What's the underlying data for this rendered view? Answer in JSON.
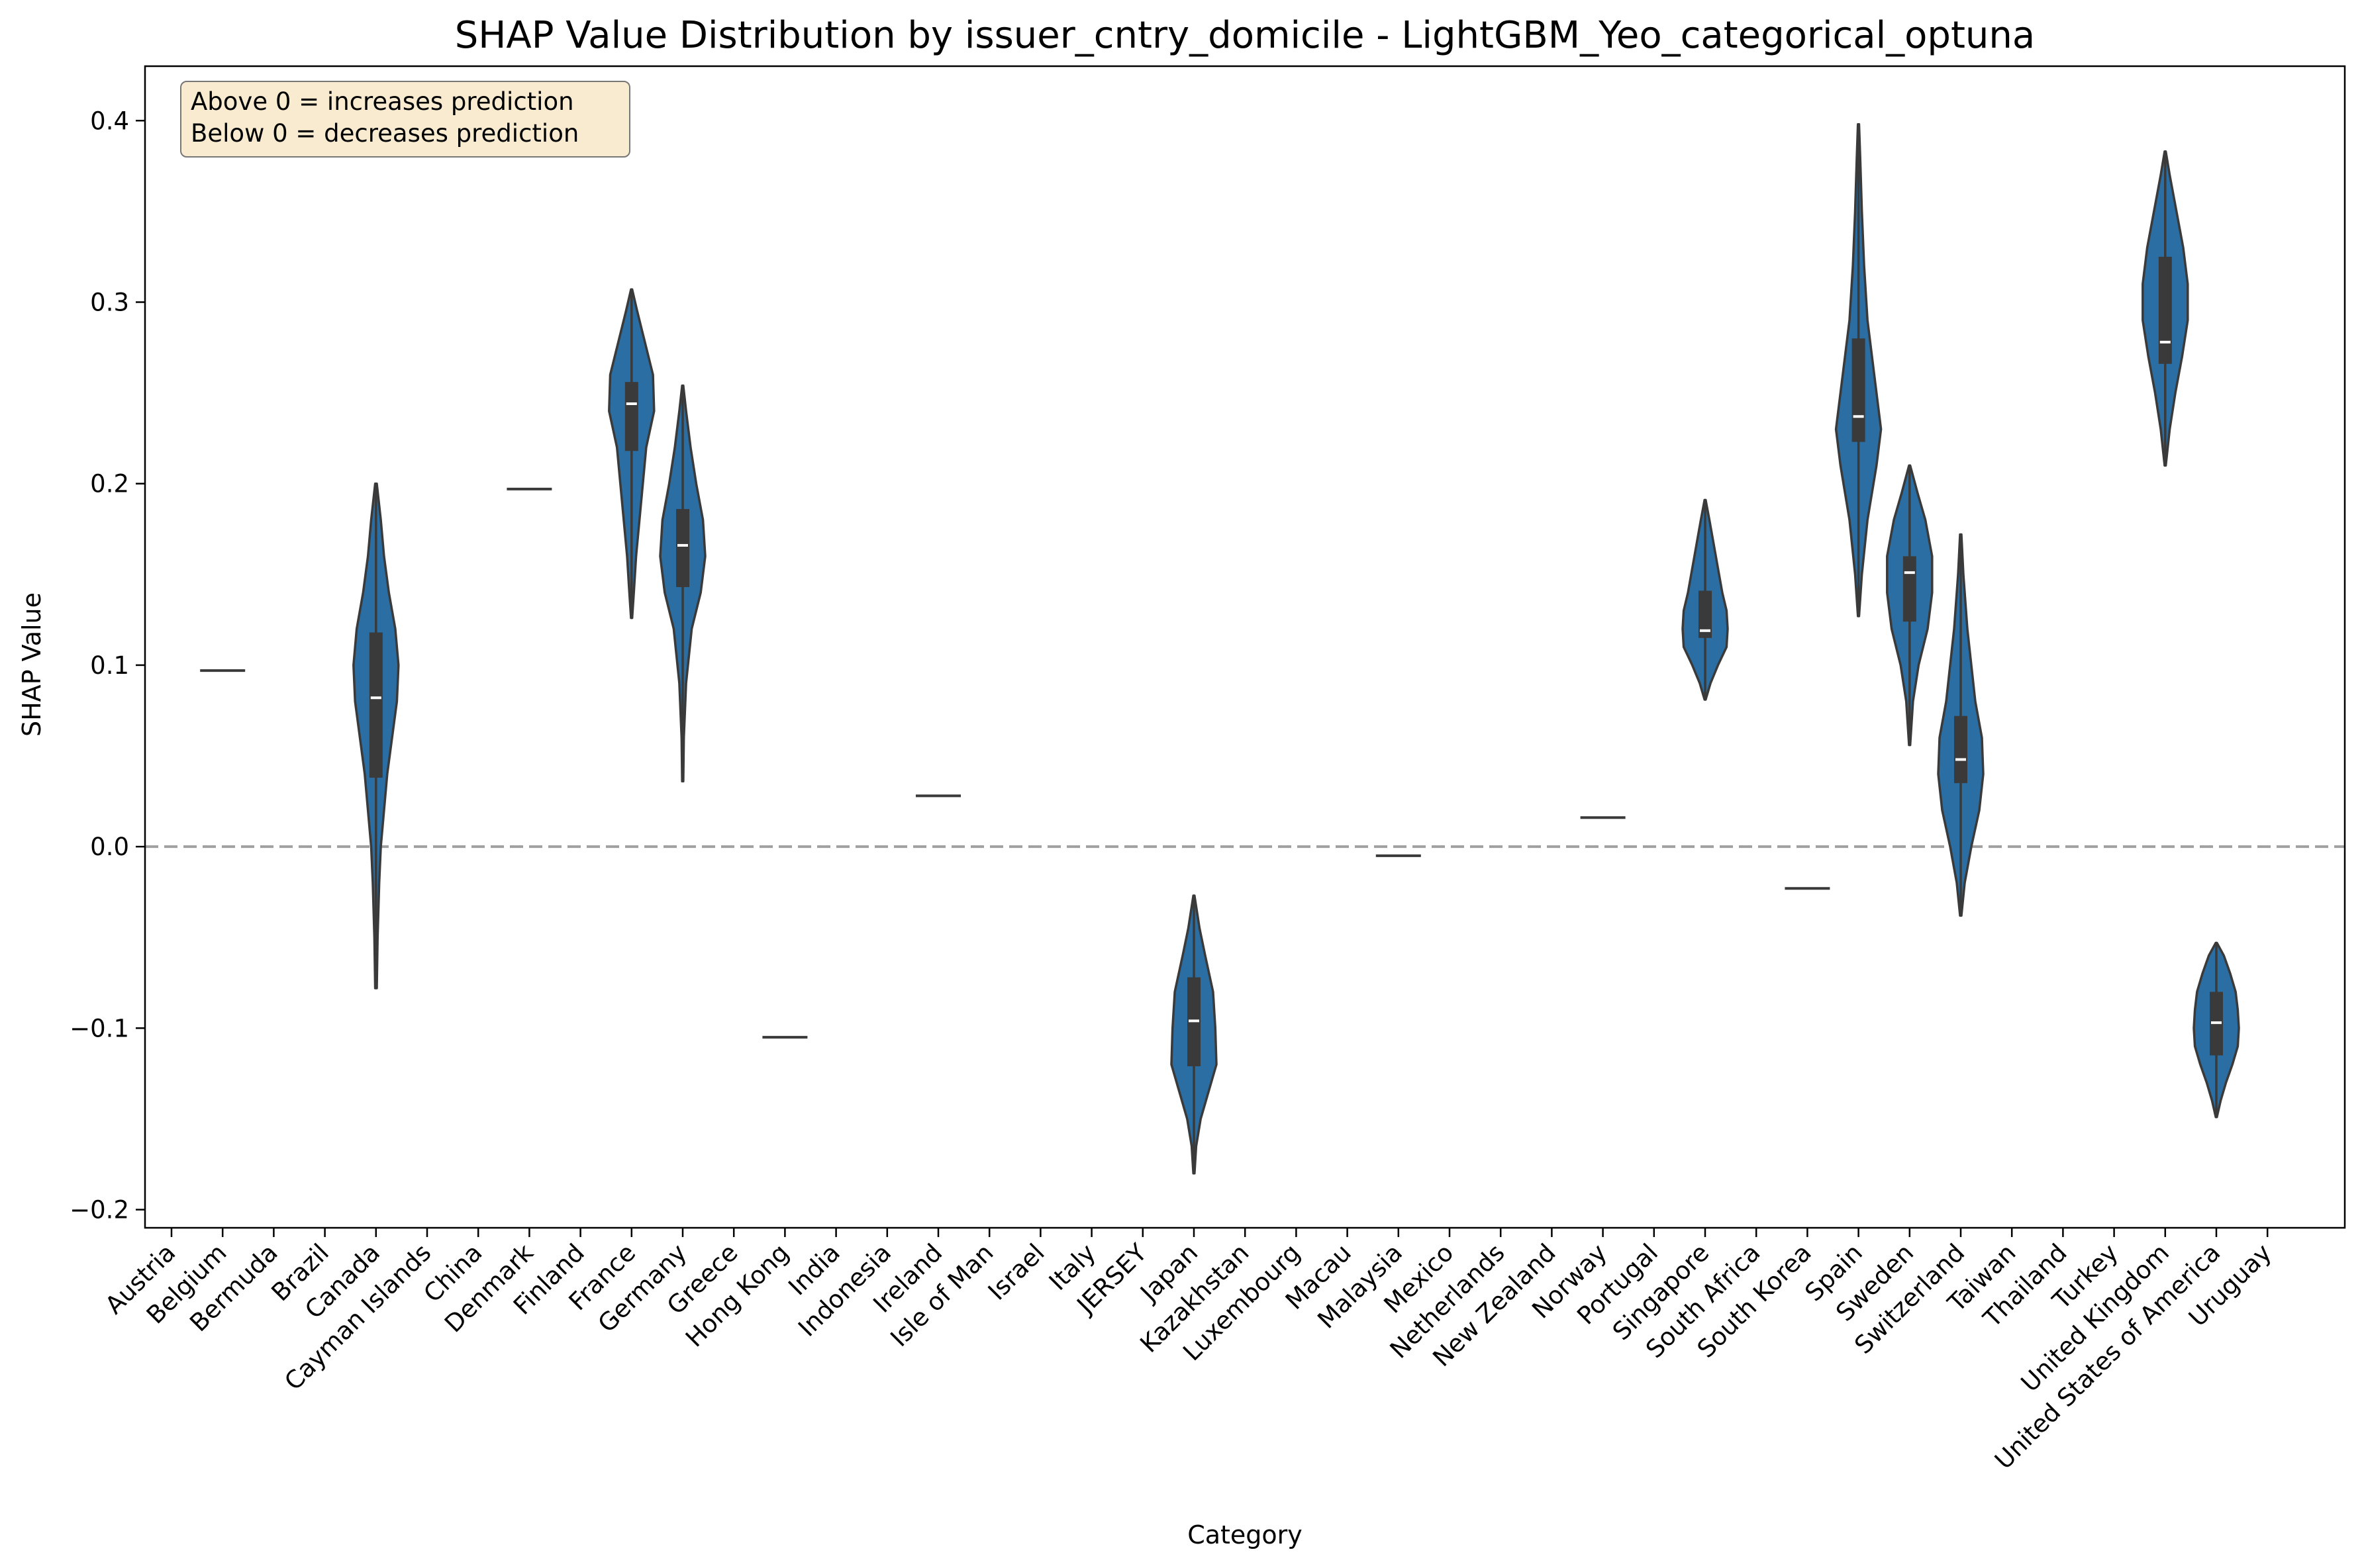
{
  "chart_data": {
    "type": "violin",
    "title": "SHAP Value Distribution by issuer_cntry_domicile - LightGBM_Yeo_categorical_optuna",
    "xlabel": "Category",
    "ylabel": "SHAP Value",
    "ylim": [
      -0.21,
      0.43
    ],
    "yticks": [
      -0.2,
      -0.1,
      0.0,
      0.1,
      0.2,
      0.3,
      0.4
    ],
    "ytick_labels": [
      "−0.2",
      "−0.1",
      "0.0",
      "0.1",
      "0.2",
      "0.3",
      "0.4"
    ],
    "reference_line": 0.0,
    "color": "#2b6ea3",
    "annotation": [
      "Above 0 = increases prediction",
      "Below 0 = decreases prediction"
    ],
    "categories": [
      "Austria",
      "Belgium",
      "Bermuda",
      "Brazil",
      "Canada",
      "Cayman Islands",
      "China",
      "Denmark",
      "Finland",
      "France",
      "Germany",
      "Greece",
      "Hong Kong",
      "India",
      "Indonesia",
      "Ireland",
      "Isle of Man",
      "Israel",
      "Italy",
      "JERSEY",
      "Japan",
      "Kazakhstan",
      "Luxembourg",
      "Macau",
      "Malaysia",
      "Mexico",
      "Netherlands",
      "New Zealand",
      "Norway",
      "Portugal",
      "Singapore",
      "South Africa",
      "South Korea",
      "Spain",
      "Sweden",
      "Switzerland",
      "Taiwan",
      "Thailand",
      "Turkey",
      "United Kingdom",
      "United States of America",
      "Uruguay"
    ],
    "violins": [
      {
        "category": "Belgium",
        "single_value": 0.097
      },
      {
        "category": "Canada",
        "min": -0.078,
        "q1": 0.038,
        "median": 0.082,
        "q3": 0.118,
        "max": 0.2,
        "profile": [
          [
            -0.078,
            0.005
          ],
          [
            -0.05,
            0.01
          ],
          [
            -0.02,
            0.02
          ],
          [
            0.0,
            0.03
          ],
          [
            0.02,
            0.05
          ],
          [
            0.04,
            0.07
          ],
          [
            0.06,
            0.1
          ],
          [
            0.08,
            0.13
          ],
          [
            0.1,
            0.14
          ],
          [
            0.12,
            0.12
          ],
          [
            0.14,
            0.08
          ],
          [
            0.16,
            0.05
          ],
          [
            0.18,
            0.03
          ],
          [
            0.2,
            0.005
          ]
        ]
      },
      {
        "category": "Denmark",
        "single_value": 0.197
      },
      {
        "category": "France",
        "min": 0.126,
        "q1": 0.218,
        "median": 0.244,
        "q3": 0.256,
        "max": 0.307,
        "profile": [
          [
            0.126,
            0.005
          ],
          [
            0.14,
            0.02
          ],
          [
            0.16,
            0.04
          ],
          [
            0.18,
            0.07
          ],
          [
            0.2,
            0.1
          ],
          [
            0.22,
            0.13
          ],
          [
            0.24,
            0.2
          ],
          [
            0.26,
            0.19
          ],
          [
            0.28,
            0.11
          ],
          [
            0.295,
            0.05
          ],
          [
            0.307,
            0.005
          ]
        ]
      },
      {
        "category": "Germany",
        "min": 0.036,
        "q1": 0.143,
        "median": 0.166,
        "q3": 0.186,
        "max": 0.254,
        "profile": [
          [
            0.036,
            0.005
          ],
          [
            0.06,
            0.01
          ],
          [
            0.09,
            0.03
          ],
          [
            0.12,
            0.08
          ],
          [
            0.14,
            0.16
          ],
          [
            0.16,
            0.2
          ],
          [
            0.18,
            0.18
          ],
          [
            0.2,
            0.12
          ],
          [
            0.22,
            0.07
          ],
          [
            0.24,
            0.03
          ],
          [
            0.254,
            0.005
          ]
        ]
      },
      {
        "category": "Hong Kong",
        "single_value": -0.105
      },
      {
        "category": "Ireland",
        "single_value": 0.028
      },
      {
        "category": "Japan",
        "min": -0.18,
        "q1": -0.121,
        "median": -0.096,
        "q3": -0.072,
        "max": -0.027,
        "profile": [
          [
            -0.18,
            0.005
          ],
          [
            -0.165,
            0.02
          ],
          [
            -0.15,
            0.06
          ],
          [
            -0.135,
            0.13
          ],
          [
            -0.12,
            0.2
          ],
          [
            -0.1,
            0.19
          ],
          [
            -0.08,
            0.17
          ],
          [
            -0.06,
            0.1
          ],
          [
            -0.045,
            0.05
          ],
          [
            -0.027,
            0.005
          ]
        ]
      },
      {
        "category": "Malaysia",
        "single_value": -0.005
      },
      {
        "category": "Norway",
        "single_value": 0.016
      },
      {
        "category": "Singapore",
        "min": 0.081,
        "q1": 0.115,
        "median": 0.119,
        "q3": 0.141,
        "max": 0.191,
        "profile": [
          [
            0.081,
            0.005
          ],
          [
            0.09,
            0.05
          ],
          [
            0.1,
            0.12
          ],
          [
            0.11,
            0.2
          ],
          [
            0.12,
            0.21
          ],
          [
            0.13,
            0.2
          ],
          [
            0.14,
            0.16
          ],
          [
            0.15,
            0.13
          ],
          [
            0.16,
            0.1
          ],
          [
            0.17,
            0.07
          ],
          [
            0.18,
            0.04
          ],
          [
            0.191,
            0.005
          ]
        ]
      },
      {
        "category": "South Korea",
        "single_value": -0.023
      },
      {
        "category": "Spain",
        "min": 0.127,
        "q1": 0.223,
        "median": 0.237,
        "q3": 0.28,
        "max": 0.398,
        "profile": [
          [
            0.127,
            0.005
          ],
          [
            0.15,
            0.03
          ],
          [
            0.18,
            0.08
          ],
          [
            0.21,
            0.16
          ],
          [
            0.23,
            0.2
          ],
          [
            0.26,
            0.14
          ],
          [
            0.29,
            0.08
          ],
          [
            0.32,
            0.05
          ],
          [
            0.35,
            0.03
          ],
          [
            0.38,
            0.015
          ],
          [
            0.398,
            0.005
          ]
        ]
      },
      {
        "category": "Sweden",
        "min": 0.056,
        "q1": 0.124,
        "median": 0.151,
        "q3": 0.16,
        "max": 0.21,
        "profile": [
          [
            0.056,
            0.005
          ],
          [
            0.08,
            0.03
          ],
          [
            0.1,
            0.08
          ],
          [
            0.12,
            0.16
          ],
          [
            0.14,
            0.2
          ],
          [
            0.16,
            0.2
          ],
          [
            0.18,
            0.14
          ],
          [
            0.195,
            0.07
          ],
          [
            0.21,
            0.005
          ]
        ]
      },
      {
        "category": "Switzerland",
        "min": -0.038,
        "q1": 0.035,
        "median": 0.048,
        "q3": 0.072,
        "max": 0.172,
        "profile": [
          [
            -0.038,
            0.005
          ],
          [
            -0.02,
            0.03
          ],
          [
            0.0,
            0.08
          ],
          [
            0.02,
            0.14
          ],
          [
            0.04,
            0.17
          ],
          [
            0.06,
            0.16
          ],
          [
            0.08,
            0.11
          ],
          [
            0.1,
            0.08
          ],
          [
            0.12,
            0.05
          ],
          [
            0.15,
            0.02
          ],
          [
            0.172,
            0.005
          ]
        ]
      },
      {
        "category": "United Kingdom",
        "min": 0.21,
        "q1": 0.266,
        "median": 0.278,
        "q3": 0.325,
        "max": 0.383,
        "profile": [
          [
            0.21,
            0.005
          ],
          [
            0.23,
            0.04
          ],
          [
            0.25,
            0.09
          ],
          [
            0.27,
            0.15
          ],
          [
            0.29,
            0.2
          ],
          [
            0.31,
            0.2
          ],
          [
            0.33,
            0.16
          ],
          [
            0.35,
            0.1
          ],
          [
            0.37,
            0.04
          ],
          [
            0.383,
            0.005
          ]
        ]
      },
      {
        "category": "United States of America",
        "min": -0.149,
        "q1": -0.115,
        "median": -0.097,
        "q3": -0.08,
        "max": -0.053,
        "profile": [
          [
            -0.149,
            0.005
          ],
          [
            -0.14,
            0.04
          ],
          [
            -0.13,
            0.09
          ],
          [
            -0.12,
            0.15
          ],
          [
            -0.11,
            0.2
          ],
          [
            -0.1,
            0.21
          ],
          [
            -0.09,
            0.2
          ],
          [
            -0.08,
            0.18
          ],
          [
            -0.07,
            0.13
          ],
          [
            -0.06,
            0.07
          ],
          [
            -0.053,
            0.005
          ]
        ]
      }
    ]
  }
}
